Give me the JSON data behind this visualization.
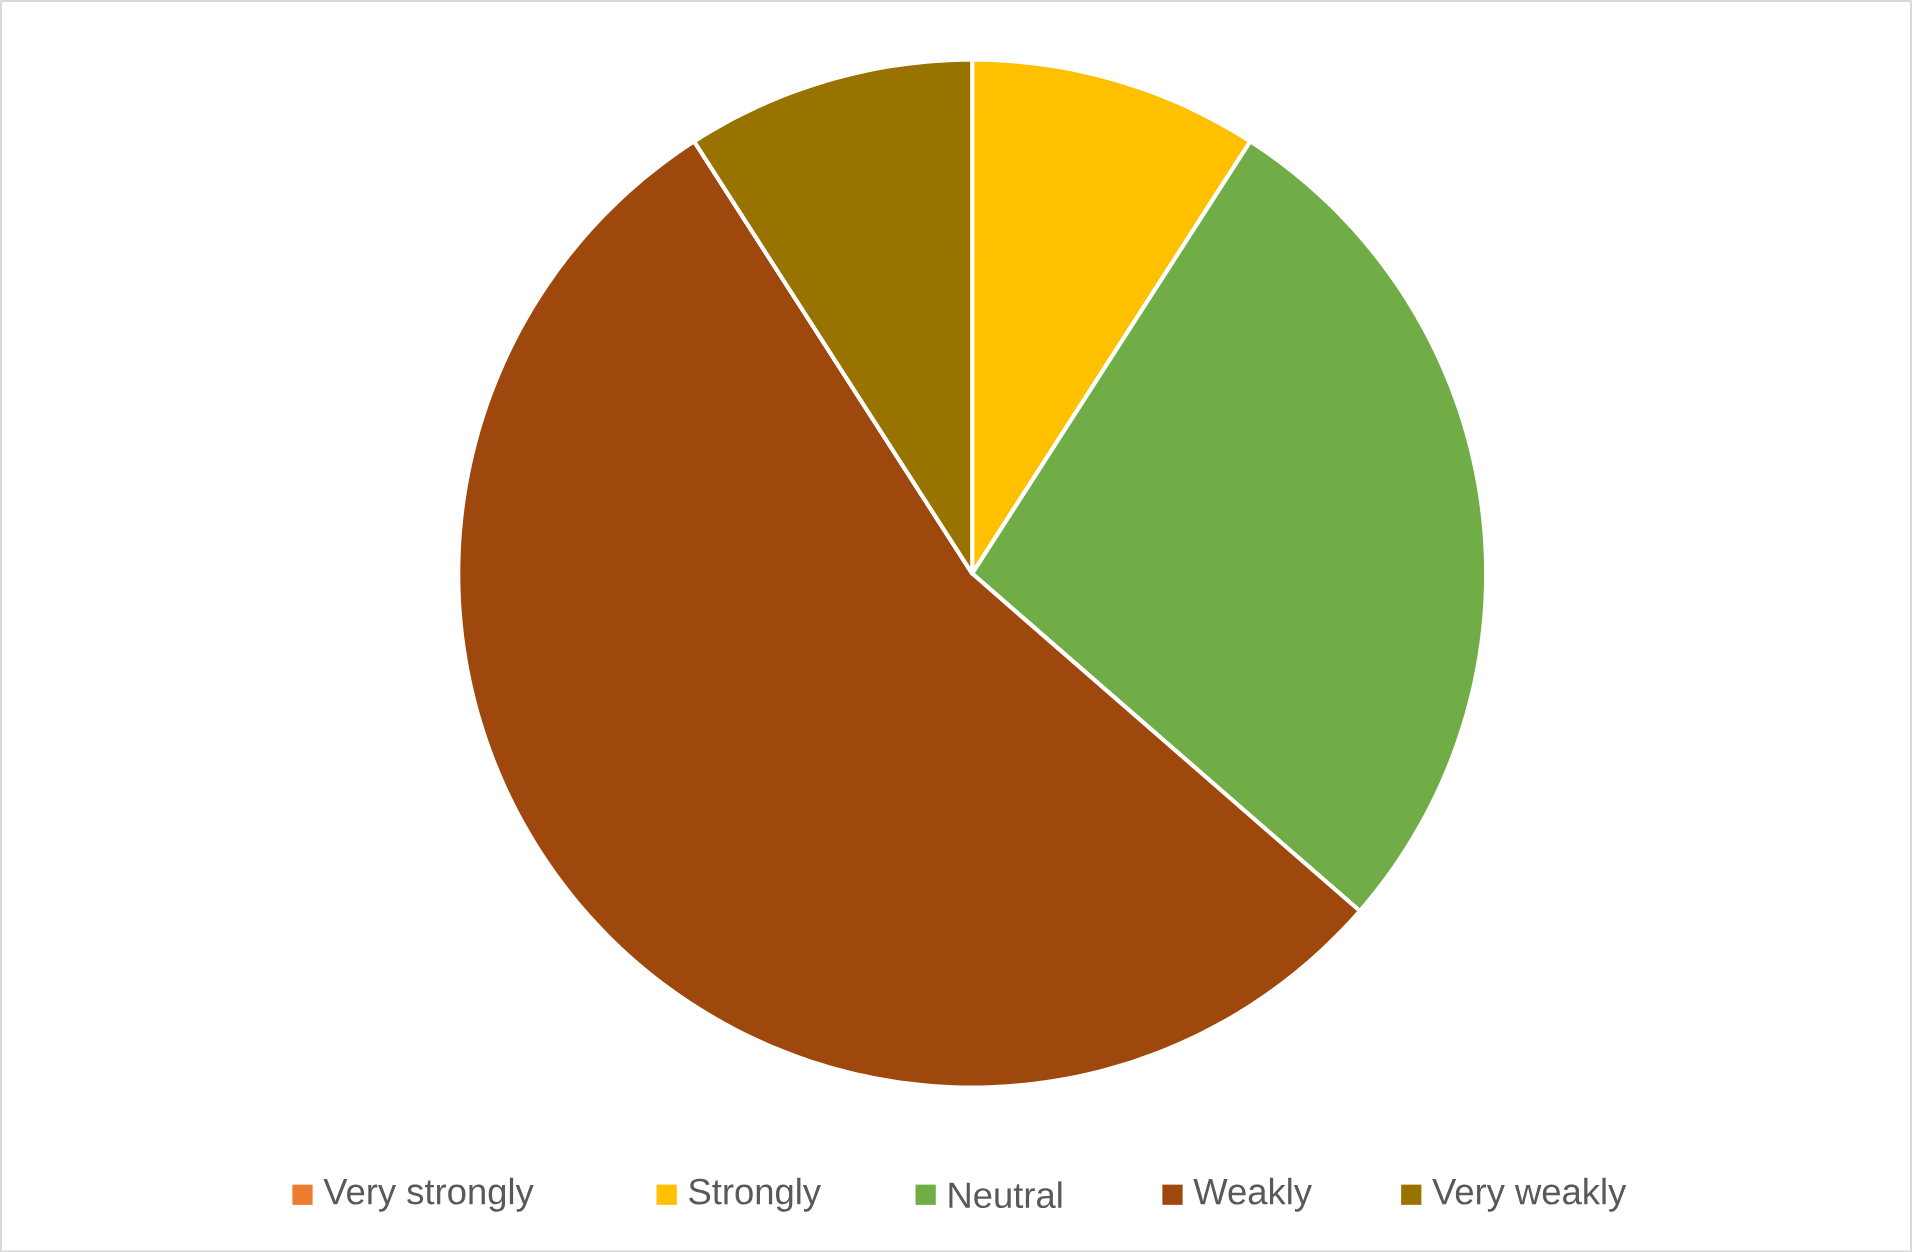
{
  "chart_data": {
    "type": "pie",
    "categories": [
      "Very strongly",
      "Strongly",
      "Neutral",
      "Weakly",
      "Very weakly"
    ],
    "values": [
      0,
      9.1,
      27.3,
      54.5,
      9.1
    ],
    "colors": [
      "#ed7d31",
      "#ffc000",
      "#70ad47",
      "#9e480e",
      "#997300"
    ],
    "legend": "bottom"
  }
}
